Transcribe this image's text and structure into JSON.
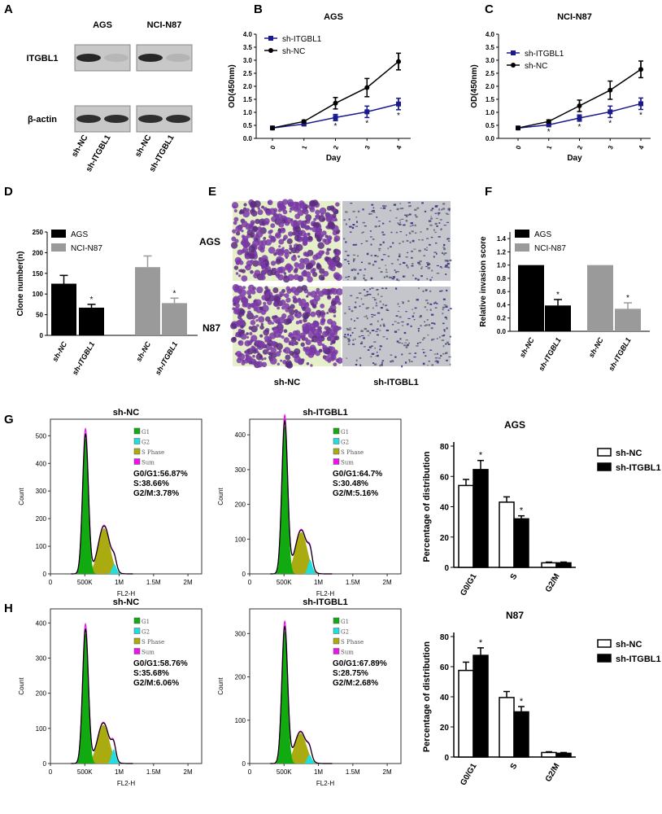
{
  "panel_letters": [
    "A",
    "B",
    "C",
    "D",
    "E",
    "F",
    "G",
    "H"
  ],
  "panel_a": {
    "cell_lines": [
      "AGS",
      "NCI-N87"
    ],
    "rows": [
      {
        "label": "ITGBL1",
        "intensities": [
          0.95,
          0.1,
          0.95,
          0.12
        ]
      },
      {
        "label": "β-actin",
        "intensities": [
          0.9,
          0.9,
          0.9,
          0.9
        ]
      }
    ],
    "lanes": [
      "sh-NC",
      "sh-ITGBL1",
      "sh-NC",
      "sh-ITGBL1"
    ]
  },
  "panel_e": {
    "rows": [
      "AGS",
      "N87"
    ],
    "columns": [
      "sh-NC",
      "sh-ITGBL1"
    ]
  },
  "chart_data": [
    {
      "id": "B",
      "type": "line",
      "title": "AGS",
      "xlabel": "Day",
      "ylabel": "OD(450nm)",
      "ylim": [
        0,
        4
      ],
      "x": [
        0,
        1,
        2,
        3,
        4
      ],
      "x_labels": [
        "0",
        "1",
        "2",
        "3",
        "4"
      ],
      "yticks": [
        0,
        0.5,
        1,
        1.5,
        2,
        2.5,
        3,
        3.5,
        4
      ],
      "ytick_labels": [
        "0.0",
        "0.5",
        "1.0",
        "1.5",
        "2.0",
        "2.5",
        "3.0",
        "3.5",
        "4.0"
      ],
      "series": [
        {
          "name": "sh-ITGBL1",
          "color": "#1a1a8c",
          "marker": "square",
          "values": [
            0.4,
            0.55,
            0.8,
            1.02,
            1.32
          ],
          "errors": [
            0.03,
            0.05,
            0.12,
            0.22,
            0.22
          ],
          "significant": [
            2,
            3,
            4
          ]
        },
        {
          "name": "sh-NC",
          "color": "#000000",
          "marker": "circle",
          "values": [
            0.4,
            0.65,
            1.35,
            1.95,
            2.95
          ],
          "errors": [
            0.05,
            0.05,
            0.22,
            0.35,
            0.32
          ],
          "significant": []
        }
      ],
      "sig_mark": "*",
      "legend": "top-left"
    },
    {
      "id": "C",
      "type": "line",
      "title": "NCI-N87",
      "xlabel": "Day",
      "ylabel": "OD(450nm)",
      "ylim": [
        0,
        4
      ],
      "x": [
        0,
        1,
        2,
        3,
        4
      ],
      "x_labels": [
        "0",
        "1",
        "2",
        "3",
        "4"
      ],
      "yticks": [
        0,
        0.5,
        1,
        1.5,
        2,
        2.5,
        3,
        3.5,
        4
      ],
      "ytick_labels": [
        "0.0",
        "0.5",
        "1.0",
        "1.5",
        "2.0",
        "2.5",
        "3.0",
        "3.5",
        "4.0"
      ],
      "series": [
        {
          "name": "sh-ITGBL1",
          "color": "#1a1a8c",
          "marker": "square",
          "values": [
            0.4,
            0.52,
            0.78,
            1.02,
            1.33
          ],
          "errors": [
            0.05,
            0.05,
            0.12,
            0.22,
            0.22
          ],
          "significant": [
            1,
            2,
            3,
            4
          ]
        },
        {
          "name": "sh-NC",
          "color": "#000000",
          "marker": "circle",
          "values": [
            0.4,
            0.65,
            1.25,
            1.85,
            2.65
          ],
          "errors": [
            0.05,
            0.06,
            0.22,
            0.35,
            0.32
          ],
          "significant": []
        }
      ],
      "sig_mark": "*",
      "legend": "top-left"
    },
    {
      "id": "D",
      "type": "bar",
      "title": "",
      "xlabel": "",
      "ylabel": "Clone number(n)",
      "ylim": [
        0,
        250
      ],
      "yticks": [
        0,
        50,
        100,
        150,
        200,
        250
      ],
      "ytick_labels": [
        "0",
        "50",
        "100",
        "150",
        "200",
        "250"
      ],
      "categories": [
        "sh-NC",
        "sh-ITGBL1",
        "sh-NC",
        "sh-ITGBL1"
      ],
      "groups": [
        "AGS",
        "AGS",
        "NCI-N87",
        "NCI-N87"
      ],
      "values": [
        125,
        67,
        165,
        78
      ],
      "errors": [
        20,
        8,
        27,
        12
      ],
      "significant": [
        false,
        true,
        false,
        true
      ],
      "legend_entries": [
        {
          "name": "AGS",
          "color": "#000000"
        },
        {
          "name": "NCI-N87",
          "color": "#9a9a9a"
        }
      ],
      "sig_mark": "*",
      "legend": "top-left"
    },
    {
      "id": "F",
      "type": "bar",
      "title": "",
      "xlabel": "",
      "ylabel": "Relative invasion score",
      "ylim": [
        0,
        1.5
      ],
      "yticks": [
        0,
        0.2,
        0.4,
        0.6,
        0.8,
        1.0,
        1.2,
        1.4
      ],
      "ytick_labels": [
        "0.0",
        "0.2",
        "0.4",
        "0.6",
        "0.8",
        "1.0",
        "1.2",
        "1.4"
      ],
      "categories": [
        "sh-NC",
        "sh-ITGBL1",
        "sh-NC",
        "sh-ITGBL1"
      ],
      "groups": [
        "AGS",
        "AGS",
        "NCI-N87",
        "NCI-N87"
      ],
      "values": [
        1.0,
        0.39,
        1.0,
        0.34
      ],
      "errors": [
        0,
        0.09,
        0,
        0.09
      ],
      "significant": [
        false,
        true,
        false,
        true
      ],
      "legend_entries": [
        {
          "name": "AGS",
          "color": "#000000"
        },
        {
          "name": "NCI-N87",
          "color": "#9a9a9a"
        }
      ],
      "sig_mark": "*",
      "legend": "top-left"
    },
    {
      "id": "G-hist-shNC",
      "type": "area",
      "title": "sh-NC",
      "xlabel": "FL2-H",
      "ylabel": "Count",
      "ylim": [
        0,
        560
      ],
      "yticks": [
        0,
        100,
        200,
        300,
        400,
        500
      ],
      "ytick_labels": [
        "0",
        "100",
        "200",
        "300",
        "400",
        "500"
      ],
      "xticks": [
        0,
        500000,
        1000000,
        1500000,
        2000000
      ],
      "xtick_labels": [
        "0",
        "500K",
        "1M",
        "1.5M",
        "2M"
      ],
      "components": {
        "G1": {
          "peak": 490,
          "center": 510000
        },
        "S": {
          "peak": 165,
          "center": 780000
        },
        "G2": {
          "peak": 35,
          "center": 930000
        }
      },
      "legend_entries": [
        {
          "name": "G1",
          "color": "#11aa11"
        },
        {
          "name": "G2",
          "color": "#22dddd"
        },
        {
          "name": "S Phase",
          "color": "#aaaa11"
        },
        {
          "name": "Sum",
          "color": "#ee11ee"
        }
      ],
      "stats": [
        "G0/G1:56.87%",
        "S:38.66%",
        "G2/M:3.78%"
      ]
    },
    {
      "id": "G-hist-shITGBL1",
      "type": "area",
      "title": "sh-ITGBL1",
      "xlabel": "FL2-H",
      "ylabel": "Count",
      "ylim": [
        0,
        445
      ],
      "yticks": [
        0,
        100,
        200,
        300,
        400
      ],
      "ytick_labels": [
        "0",
        "100",
        "200",
        "300",
        "400"
      ],
      "xticks": [
        0,
        500000,
        1000000,
        1500000,
        2000000
      ],
      "xtick_labels": [
        "0",
        "500K",
        "1M",
        "1.5M",
        "2M"
      ],
      "components": {
        "G1": {
          "peak": 425,
          "center": 510000
        },
        "S": {
          "peak": 120,
          "center": 750000
        },
        "G2": {
          "peak": 40,
          "center": 880000
        }
      },
      "legend_entries": [
        {
          "name": "G1",
          "color": "#11aa11"
        },
        {
          "name": "G2",
          "color": "#22dddd"
        },
        {
          "name": "S Phase",
          "color": "#aaaa11"
        },
        {
          "name": "Sum",
          "color": "#ee11ee"
        }
      ],
      "stats": [
        "G0/G1:64.7%",
        "S:30.48%",
        "G2/M:5.16%"
      ]
    },
    {
      "id": "G-bar",
      "type": "bar",
      "title": "AGS",
      "xlabel": "",
      "ylabel": "Percentage of distribution",
      "ylim": [
        0,
        80
      ],
      "yticks": [
        0,
        20,
        40,
        60,
        80
      ],
      "ytick_labels": [
        "0",
        "20",
        "40",
        "60",
        "80"
      ],
      "categories": [
        "G0/G1",
        "S",
        "G2/M"
      ],
      "series": [
        {
          "name": "sh-NC",
          "color": "#ffffff",
          "values": [
            54,
            43,
            3
          ],
          "errors": [
            4,
            3.5,
            0.5
          ],
          "significant": [
            false,
            false,
            false
          ]
        },
        {
          "name": "sh-ITGBL1",
          "color": "#000000",
          "values": [
            64.5,
            32,
            3
          ],
          "errors": [
            6,
            2,
            0.5
          ],
          "significant": [
            true,
            true,
            false
          ]
        }
      ],
      "sig_mark": "*",
      "legend": "top-right"
    },
    {
      "id": "H-hist-shNC",
      "type": "area",
      "title": "sh-NC",
      "xlabel": "FL2-H",
      "ylabel": "Count",
      "ylim": [
        0,
        440
      ],
      "yticks": [
        0,
        100,
        200,
        300,
        400
      ],
      "ytick_labels": [
        "0",
        "100",
        "200",
        "300",
        "400"
      ],
      "xticks": [
        0,
        500000,
        1000000,
        1500000,
        2000000
      ],
      "xtick_labels": [
        "0",
        "500K",
        "1M",
        "1.5M",
        "2M"
      ],
      "components": {
        "G1": {
          "peak": 370,
          "center": 510000
        },
        "S": {
          "peak": 110,
          "center": 770000
        },
        "G2": {
          "peak": 40,
          "center": 920000
        }
      },
      "legend_entries": [
        {
          "name": "G1",
          "color": "#11aa11"
        },
        {
          "name": "G2",
          "color": "#22dddd"
        },
        {
          "name": "S Phase",
          "color": "#aaaa11"
        },
        {
          "name": "Sum",
          "color": "#ee11ee"
        }
      ],
      "stats": [
        "G0/G1:58.76%",
        "S:35.68%",
        "G2/M:6.06%"
      ]
    },
    {
      "id": "H-hist-shITGBL1",
      "type": "area",
      "title": "sh-ITGBL1",
      "xlabel": "FL2-H",
      "ylabel": "Count",
      "ylim": [
        0,
        357
      ],
      "yticks": [
        0,
        100,
        200,
        300
      ],
      "ytick_labels": [
        "0",
        "100",
        "200",
        "300"
      ],
      "xticks": [
        0,
        500000,
        1000000,
        1500000,
        2000000
      ],
      "xtick_labels": [
        "0",
        "500K",
        "1M",
        "1.5M",
        "2M"
      ],
      "components": {
        "G1": {
          "peak": 305,
          "center": 510000
        },
        "S": {
          "peak": 70,
          "center": 740000
        },
        "G2": {
          "peak": 20,
          "center": 870000
        }
      },
      "legend_entries": [
        {
          "name": "G1",
          "color": "#11aa11"
        },
        {
          "name": "G2",
          "color": "#22dddd"
        },
        {
          "name": "S Phase",
          "color": "#aaaa11"
        },
        {
          "name": "Sum",
          "color": "#ee11ee"
        }
      ],
      "stats": [
        "G0/G1:67.89%",
        "S:28.75%",
        "G2/M:2.68%"
      ]
    },
    {
      "id": "H-bar",
      "type": "bar",
      "title": "N87",
      "xlabel": "",
      "ylabel": "Percentage of distribution",
      "ylim": [
        0,
        80
      ],
      "yticks": [
        0,
        20,
        40,
        60,
        80
      ],
      "ytick_labels": [
        "0",
        "20",
        "40",
        "60",
        "80"
      ],
      "categories": [
        "G0/G1",
        "S",
        "G2/M"
      ],
      "series": [
        {
          "name": "sh-NC",
          "color": "#ffffff",
          "values": [
            57.5,
            39.5,
            3
          ],
          "errors": [
            5.5,
            4,
            0.5
          ],
          "significant": [
            false,
            false,
            false
          ]
        },
        {
          "name": "sh-ITGBL1",
          "color": "#000000",
          "values": [
            67.5,
            30,
            2.5
          ],
          "errors": [
            5,
            3.5,
            0.5
          ],
          "significant": [
            true,
            true,
            false
          ]
        }
      ],
      "sig_mark": "*",
      "legend": "top-right"
    }
  ]
}
